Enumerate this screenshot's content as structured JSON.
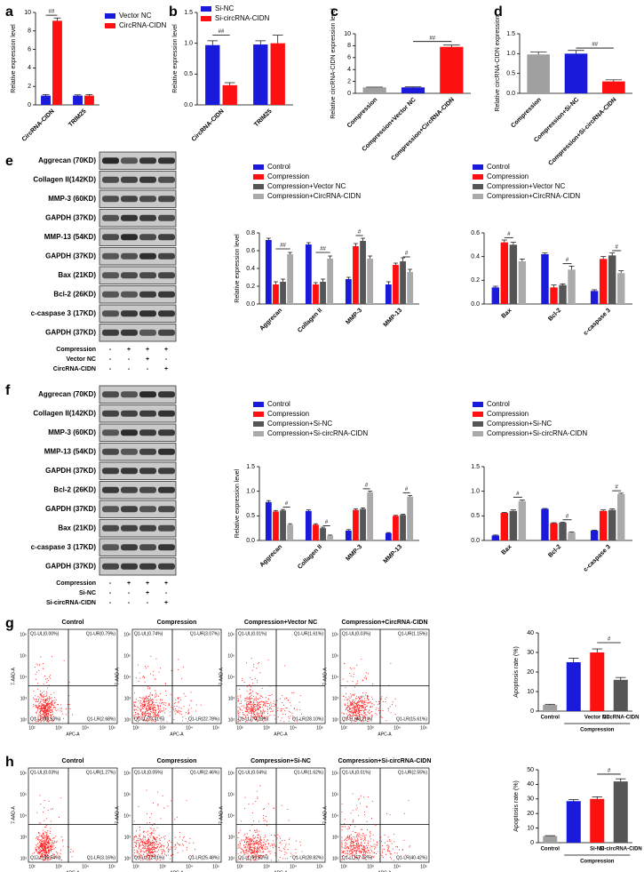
{
  "panels": [
    "a",
    "b",
    "c",
    "d",
    "e",
    "f",
    "g",
    "h"
  ],
  "chart_data": [
    {
      "type": "bar",
      "ylabel": "Relative expression level",
      "categories": [
        "CircRNA-CIDN",
        "TRIM25"
      ],
      "series": [
        {
          "name": "Vector NC",
          "color": "#1a1adb",
          "values": [
            1.0,
            1.0
          ],
          "errors": [
            0.12,
            0.08
          ]
        },
        {
          "name": "CircRNA-CIDN",
          "color": "#ff1010",
          "values": [
            9.1,
            1.0
          ],
          "errors": [
            0.3,
            0.12
          ]
        }
      ],
      "ylim": [
        0,
        10
      ],
      "yticks": [
        0,
        2,
        4,
        6,
        8,
        10
      ],
      "annotations": [
        "##"
      ]
    },
    {
      "type": "bar",
      "ylabel": "Relative expression level",
      "categories": [
        "CircRNA-CIDN",
        "TRIM25"
      ],
      "series": [
        {
          "name": "Si-NC",
          "color": "#1a1adb",
          "values": [
            0.97,
            0.98
          ],
          "errors": [
            0.07,
            0.06
          ]
        },
        {
          "name": "Si-circRNA-CIDN",
          "color": "#ff1010",
          "values": [
            0.32,
            1.0
          ],
          "errors": [
            0.04,
            0.13
          ]
        }
      ],
      "ylim": [
        0,
        1.5
      ],
      "yticks": [
        {
          "value": 0,
          "label": "0.0"
        },
        0.5,
        {
          "value": 1,
          "label": "1.0"
        },
        1.5
      ],
      "annotations": [
        "##"
      ]
    },
    {
      "type": "bar",
      "ylabel": "Relative circRNA-CIDN expression level",
      "categories": [
        "Compression",
        "Compression+Vector NC",
        "Compression+CircRNA-CIDN"
      ],
      "values": [
        1.0,
        1.0,
        7.8
      ],
      "errors": [
        0.05,
        0.08,
        0.3
      ],
      "colors": [
        "#a0a0a0",
        "#1a1adb",
        "#ff1010"
      ],
      "ylim": [
        0,
        10
      ],
      "yticks": [
        0,
        2,
        4,
        6,
        8,
        10
      ],
      "annotations": [
        "##"
      ]
    },
    {
      "type": "bar",
      "ylabel": "Relative circRNA-CIDN expression",
      "categories": [
        "Compression",
        "Compression+Si-NC",
        "Compression+Si-circRNA-CIDN"
      ],
      "values": [
        0.98,
        1.0,
        0.3
      ],
      "errors": [
        0.06,
        0.08,
        0.04
      ],
      "colors": [
        "#a0a0a0",
        "#1a1adb",
        "#ff1010"
      ],
      "ylim": [
        0,
        1.5
      ],
      "yticks": [
        {
          "value": 0,
          "label": "0.0"
        },
        0.5,
        {
          "value": 1,
          "label": "1.0"
        },
        1.5
      ],
      "annotations": [
        "##"
      ]
    },
    {
      "type": "bar",
      "ylabel": "Relative expression level",
      "categories": [
        "Aggrecan",
        "Collagen II",
        "MMP-3",
        "MMP-13"
      ],
      "series": [
        {
          "name": "Control",
          "color": "#1a1adb",
          "values": [
            0.72,
            0.67,
            0.28,
            0.22
          ],
          "errors": [
            0.02,
            0.02,
            0.02,
            0.03
          ]
        },
        {
          "name": "Compression",
          "color": "#ff1010",
          "values": [
            0.22,
            0.22,
            0.65,
            0.44
          ],
          "errors": [
            0.03,
            0.02,
            0.03,
            0.02
          ]
        },
        {
          "name": "Compression+Vector NC",
          "color": "#555555",
          "values": [
            0.25,
            0.25,
            0.71,
            0.48
          ],
          "errors": [
            0.03,
            0.03,
            0.03,
            0.04
          ]
        },
        {
          "name": "Compression+CircRNA-CIDN",
          "color": "#aaaaaa",
          "values": [
            0.56,
            0.51,
            0.51,
            0.36
          ],
          "errors": [
            0.02,
            0.03,
            0.03,
            0.03
          ]
        }
      ],
      "ylim": [
        0,
        0.8
      ],
      "yticks": [
        {
          "value": 0,
          "label": "0.0"
        },
        0.2,
        0.4,
        0.6,
        0.8
      ],
      "annotations": [
        "##",
        "##",
        "#",
        "#"
      ]
    },
    {
      "type": "bar",
      "ylabel": "",
      "categories": [
        "Bax",
        "Bcl-2",
        "c-caspase 3"
      ],
      "series": [
        {
          "name": "Control",
          "color": "#1a1adb",
          "values": [
            0.14,
            0.42,
            0.11
          ],
          "errors": [
            0.01,
            0.01,
            0.01
          ]
        },
        {
          "name": "Compression",
          "color": "#ff1010",
          "values": [
            0.52,
            0.14,
            0.38
          ],
          "errors": [
            0.02,
            0.02,
            0.02
          ]
        },
        {
          "name": "Compression+Vector NC",
          "color": "#555555",
          "values": [
            0.5,
            0.16,
            0.41
          ],
          "errors": [
            0.02,
            0.01,
            0.02
          ]
        },
        {
          "name": "Compression+CircRNA-CIDN",
          "color": "#aaaaaa",
          "values": [
            0.36,
            0.29,
            0.26
          ],
          "errors": [
            0.02,
            0.03,
            0.02
          ]
        }
      ],
      "ylim": [
        0,
        0.6
      ],
      "yticks": [
        {
          "value": 0,
          "label": "0.0"
        },
        0.2,
        0.4,
        0.6
      ],
      "annotations": [
        "#",
        "#",
        "#"
      ]
    },
    {
      "type": "bar",
      "ylabel": "Relative expression level",
      "categories": [
        "Aggrecan",
        "Collagen II",
        "MMP-3",
        "MMP-13"
      ],
      "series": [
        {
          "name": "Control",
          "color": "#1a1adb",
          "values": [
            0.78,
            0.6,
            0.2,
            0.15
          ],
          "errors": [
            0.03,
            0.02,
            0.02,
            0.01
          ]
        },
        {
          "name": "Compression",
          "color": "#ff1010",
          "values": [
            0.59,
            0.32,
            0.62,
            0.5
          ],
          "errors": [
            0.02,
            0.02,
            0.02,
            0.01
          ]
        },
        {
          "name": "Compression+Si-NC",
          "color": "#555555",
          "values": [
            0.61,
            0.25,
            0.64,
            0.52
          ],
          "errors": [
            0.02,
            0.02,
            0.02,
            0.01
          ]
        },
        {
          "name": "Compression+Si-circRNA-CIDN",
          "color": "#aaaaaa",
          "values": [
            0.32,
            0.1,
            0.98,
            0.89
          ],
          "errors": [
            0.02,
            0.01,
            0.02,
            0.02
          ]
        }
      ],
      "ylim": [
        0,
        1.5
      ],
      "yticks": [
        {
          "value": 0,
          "label": "0.0"
        },
        0.5,
        {
          "value": 1,
          "label": "1.0"
        },
        1.5
      ],
      "annotations": [
        "#",
        "#",
        "#",
        "#"
      ]
    },
    {
      "type": "bar",
      "ylabel": "",
      "categories": [
        "Bax",
        "Bcl-2",
        "c-caspase 3"
      ],
      "series": [
        {
          "name": "Control",
          "color": "#1a1adb",
          "values": [
            0.1,
            0.64,
            0.2
          ],
          "errors": [
            0.01,
            0.01,
            0.01
          ]
        },
        {
          "name": "Compression",
          "color": "#ff1010",
          "values": [
            0.56,
            0.35,
            0.6
          ],
          "errors": [
            0.01,
            0.01,
            0.02
          ]
        },
        {
          "name": "Compression+Si-NC",
          "color": "#555555",
          "values": [
            0.6,
            0.36,
            0.62
          ],
          "errors": [
            0.02,
            0.01,
            0.02
          ]
        },
        {
          "name": "Compression+Si-circRNA-CIDN",
          "color": "#aaaaaa",
          "values": [
            0.8,
            0.16,
            0.94
          ],
          "errors": [
            0.02,
            0.01,
            0.02
          ]
        }
      ],
      "ylim": [
        0,
        1.5
      ],
      "yticks": [
        {
          "value": 0,
          "label": "0.0"
        },
        0.5,
        {
          "value": 1,
          "label": "1.0"
        },
        1.5
      ],
      "annotations": [
        "#",
        "#",
        "#"
      ]
    },
    {
      "type": "bar",
      "ylabel": "Apoptosis rate (%)",
      "categories": [
        "Control",
        null,
        "Vector NC",
        "CircRNA-CIDN"
      ],
      "group_label": "Compression",
      "values": [
        3.2,
        25,
        30,
        16
      ],
      "errors": [
        0.3,
        2,
        1.8,
        1.2
      ],
      "colors": [
        "#a0a0a0",
        "#1a1adb",
        "#ff1010",
        "#555555"
      ],
      "ylim": [
        0,
        40
      ],
      "yticks": [
        0,
        10,
        20,
        30,
        40
      ],
      "annotations": [
        "#"
      ]
    },
    {
      "type": "bar",
      "ylabel": "Apoptosis rate (%)",
      "categories": [
        "Control",
        null,
        "Si-NC",
        "Si-circRNA-CIDN"
      ],
      "group_label": "Compression",
      "values": [
        4.5,
        28.5,
        30,
        42
      ],
      "errors": [
        0.3,
        1,
        1.5,
        1.8
      ],
      "colors": [
        "#a0a0a0",
        "#1a1adb",
        "#ff1010",
        "#555555"
      ],
      "ylim": [
        0,
        50
      ],
      "yticks": [
        0,
        10,
        20,
        30,
        40,
        50
      ],
      "annotations": [
        "#"
      ]
    }
  ],
  "blots": [
    {
      "proteins": [
        "Aggrecan (70KD)",
        "Collagen II(142KD)",
        "MMP-3 (60KD)",
        "GAPDH (37KD)",
        "MMP-13 (54KD)",
        "GAPDH (37KD)",
        "Bax (21KD)",
        "Bcl-2 (26KD)",
        "c-caspase 3 (17KD)",
        "GAPDH (37KD)"
      ],
      "treatments": [
        {
          "name": "Compression",
          "marks": [
            "-",
            "+",
            "+",
            "+"
          ]
        },
        {
          "name": "Vector NC",
          "marks": [
            "-",
            "-",
            "+",
            "-"
          ]
        },
        {
          "name": "CircRNA-CIDN",
          "marks": [
            "-",
            "-",
            "-",
            "+"
          ]
        }
      ]
    },
    {
      "proteins": [
        "Aggrecan (70KD)",
        "Collagen II(142KD)",
        "MMP-3 (60KD)",
        "MMP-13 (54KD)",
        "GAPDH (37KD)",
        "Bcl-2 (26KD)",
        "GAPDH (37KD)",
        "Bax (21KD)",
        "c-caspase 3 (17KD)",
        "GAPDH (37KD)"
      ],
      "treatments": [
        {
          "name": "Compression",
          "marks": [
            "-",
            "+",
            "+",
            "+"
          ]
        },
        {
          "name": "Si-NC",
          "marks": [
            "-",
            "-",
            "+",
            "-"
          ]
        },
        {
          "name": "Si-circRNA-CIDN",
          "marks": [
            "-",
            "-",
            "-",
            "+"
          ]
        }
      ]
    }
  ],
  "flow_axes": {
    "x": "APC-A",
    "y": "7-AAD-A",
    "xticks": [
      "10²",
      "10³",
      "10⁴",
      "10⁵"
    ],
    "yticks": [
      "10²",
      "10³",
      "10⁴",
      "10⁵",
      "10⁶"
    ]
  },
  "flow": [
    {
      "plots": [
        {
          "title": "Control",
          "quadrants": [
            "Q1-UL(0.00%)",
            "Q1-UR(0.79%)",
            "Q1-LL(96.53%)",
            "Q1-LR(2.68%)"
          ]
        },
        {
          "title": "Compression",
          "quadrants": [
            "Q1-UL(0.74%)",
            "Q1-UR(3.07%)",
            "Q1-LL(73.41%)",
            "Q1-LR(22.78%)"
          ]
        },
        {
          "title": "Compression+Vector NC",
          "quadrants": [
            "Q1-UL(0.01%)",
            "Q1-UR(1.61%)",
            "Q1-LL(70.28%)",
            "Q1-LR(28.10%)"
          ]
        },
        {
          "title": "Compression+CircRNA-CIDN",
          "quadrants": [
            "Q1-UL(0.03%)",
            "Q1-UR(1.15%)",
            "Q1-LL(83.21%)",
            "Q1-LR(15.61%)"
          ]
        }
      ]
    },
    {
      "plots": [
        {
          "title": "Control",
          "quadrants": [
            "Q1-UL(0.03%)",
            "Q1-UR(1.27%)",
            "Q1-LL(95.54%)",
            "Q1-LR(3.16%)"
          ]
        },
        {
          "title": "Compression",
          "quadrants": [
            "Q1-UL(0.05%)",
            "Q1-UR(2.46%)",
            "Q1-LL(72.01%)",
            "Q1-LR(25.48%)"
          ]
        },
        {
          "title": "Compression+Si-NC",
          "quadrants": [
            "Q1-UL(0.04%)",
            "Q1-UR(1.62%)",
            "Q1-LL(69.52%)",
            "Q1-LR(28.82%)"
          ]
        },
        {
          "title": "Compression+Si-circRNA-CIDN",
          "quadrants": [
            "Q1-UL(0.01%)",
            "Q1-UR(2.55%)",
            "Q1-LL(57.02%)",
            "Q1-LR(40.42%)"
          ]
        }
      ]
    }
  ]
}
